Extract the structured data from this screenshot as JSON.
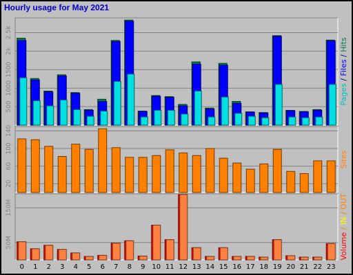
{
  "chart_data": [
    {
      "type": "bar",
      "title": "Hourly usage for May 2021",
      "ylabel_parts": [
        {
          "text": "Pages",
          "color": "#00c0c0"
        },
        {
          "text": " / ",
          "color": "#000080"
        },
        {
          "text": "Files",
          "color": "#0000ff"
        },
        {
          "text": " / ",
          "color": "#000080"
        },
        {
          "text": "Hits",
          "color": "#008040"
        }
      ],
      "categories": [
        "0",
        "1",
        "2",
        "3",
        "4",
        "5",
        "6",
        "7",
        "8",
        "9",
        "10",
        "11",
        "12",
        "13",
        "14",
        "15",
        "16",
        "17",
        "18",
        "19",
        "20",
        "21",
        "22",
        "23"
      ],
      "ylim": [
        0,
        2900
      ],
      "yticks": [
        500,
        1000,
        1500,
        2000,
        2500
      ],
      "ytick_labels": [
        "500",
        "1000",
        "1500",
        "2k",
        "2.5k"
      ],
      "series": [
        {
          "name": "Hits",
          "color": "#008040",
          "values": [
            2350,
            1260,
            920,
            1360,
            880,
            420,
            700,
            2290,
            2840,
            380,
            800,
            770,
            560,
            1710,
            460,
            1670,
            640,
            360,
            340,
            2420,
            400,
            370,
            420,
            2300
          ]
        },
        {
          "name": "Files",
          "color": "#0000ff",
          "values": [
            2290,
            1220,
            900,
            1330,
            860,
            400,
            640,
            2260,
            2810,
            370,
            780,
            750,
            520,
            1650,
            440,
            1620,
            590,
            350,
            330,
            2400,
            390,
            360,
            400,
            2280
          ]
        },
        {
          "name": "Pages",
          "color": "#00e0e0",
          "values": [
            1280,
            660,
            520,
            680,
            420,
            240,
            380,
            1180,
            1380,
            220,
            400,
            400,
            300,
            920,
            220,
            760,
            320,
            240,
            200,
            1100,
            220,
            200,
            220,
            1100
          ]
        }
      ]
    },
    {
      "type": "bar",
      "ylabel": "Sites",
      "ylabel_color": "#ff8000",
      "categories": [
        "0",
        "1",
        "2",
        "3",
        "4",
        "5",
        "6",
        "7",
        "8",
        "9",
        "10",
        "11",
        "12",
        "13",
        "14",
        "15",
        "16",
        "17",
        "18",
        "19",
        "20",
        "21",
        "22",
        "23"
      ],
      "ylim": [
        0,
        150
      ],
      "yticks": [
        20,
        60,
        100,
        140
      ],
      "ytick_labels": [
        "20",
        "60",
        "100",
        "140"
      ],
      "series": [
        {
          "name": "Sites",
          "color": "#ff8000",
          "values": [
            122,
            120,
            105,
            82,
            110,
            98,
            145,
            102,
            80,
            80,
            84,
            97,
            90,
            84,
            100,
            78,
            67,
            53,
            65,
            98,
            48,
            43,
            72,
            72
          ]
        }
      ]
    },
    {
      "type": "bar",
      "ylabel_parts": [
        {
          "text": "Volume",
          "color": "#ff0000"
        },
        {
          "text": " / ",
          "color": "#ff8000"
        },
        {
          "text": "IN",
          "color": "#ffff00"
        },
        {
          "text": " / ",
          "color": "#ff8000"
        },
        {
          "text": "OUT",
          "color": "#ff8000"
        },
        {
          "text": " ",
          "color": "#ff8000"
        }
      ],
      "categories": [
        "0",
        "1",
        "2",
        "3",
        "4",
        "5",
        "6",
        "7",
        "8",
        "9",
        "10",
        "11",
        "12",
        "13",
        "14",
        "15",
        "16",
        "17",
        "18",
        "19",
        "20",
        "21",
        "22",
        "23"
      ],
      "ylim": [
        0,
        190
      ],
      "yticks": [
        50,
        150
      ],
      "ytick_labels": [
        "50M",
        "150M"
      ],
      "series": [
        {
          "name": "Volume",
          "color": "#ff0000",
          "values": [
            52,
            32,
            42,
            30,
            20,
            10,
            13,
            48,
            55,
            11,
            100,
            58,
            188,
            35,
            10,
            35,
            10,
            10,
            8,
            58,
            12,
            8,
            8,
            47
          ]
        },
        {
          "name": "OUT",
          "color": "#ff8040",
          "values": [
            52,
            32,
            42,
            30,
            20,
            10,
            13,
            48,
            55,
            11,
            100,
            58,
            188,
            35,
            10,
            35,
            10,
            10,
            8,
            58,
            12,
            8,
            8,
            47
          ]
        }
      ]
    }
  ]
}
